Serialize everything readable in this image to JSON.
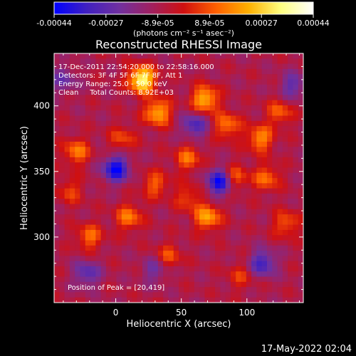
{
  "colorbar": {
    "tick_labels": [
      "-0.00044",
      "-0.00027",
      "-8.9e-05",
      "8.9e-05",
      "0.00027",
      "0.00044"
    ],
    "unit_label": "(photons cm⁻² s⁻¹ asec⁻²)",
    "range": [
      -0.00044,
      0.00044
    ],
    "colors": [
      "#0000ff",
      "#4020c0",
      "#7030a0",
      "#a02060",
      "#d01010",
      "#ff6000",
      "#ffb000",
      "#ffff80",
      "#ffffff"
    ]
  },
  "chart_data": {
    "type": "heatmap",
    "title": "Reconstructed RHESSI Image",
    "xlabel": "Heliocentric X (arcsec)",
    "ylabel": "Heliocentric Y (arcsec)",
    "xlim": [
      -47,
      143
    ],
    "ylim": [
      250,
      440
    ],
    "x_ticks": [
      0,
      50,
      100
    ],
    "y_ticks": [
      300,
      350,
      400
    ],
    "x_tick_labels": [
      "0",
      "50",
      "100"
    ],
    "y_tick_labels": [
      "300",
      "350",
      "400"
    ],
    "grid": false,
    "peak": {
      "x": 20,
      "y": 419
    },
    "hot_spots": [
      {
        "x": 20,
        "y": 420,
        "value": 0.00044
      },
      {
        "x": 32,
        "y": 395,
        "value": 0.0003
      },
      {
        "x": 68,
        "y": 405,
        "value": 0.00032
      },
      {
        "x": 85,
        "y": 385,
        "value": 0.00022
      },
      {
        "x": 110,
        "y": 375,
        "value": 0.00025
      },
      {
        "x": 125,
        "y": 395,
        "value": 0.00018
      },
      {
        "x": -30,
        "y": 365,
        "value": 0.00022
      },
      {
        "x": 5,
        "y": 375,
        "value": 0.00015
      },
      {
        "x": 55,
        "y": 360,
        "value": 0.0002
      },
      {
        "x": 70,
        "y": 315,
        "value": 0.00028
      },
      {
        "x": 90,
        "y": 345,
        "value": 0.00022
      },
      {
        "x": 115,
        "y": 345,
        "value": 0.0002
      },
      {
        "x": 130,
        "y": 310,
        "value": 0.00018
      },
      {
        "x": -20,
        "y": 300,
        "value": 0.0002
      },
      {
        "x": 10,
        "y": 315,
        "value": 0.00022
      },
      {
        "x": 30,
        "y": 340,
        "value": 0.00018
      },
      {
        "x": 40,
        "y": 285,
        "value": 0.00016
      },
      {
        "x": 95,
        "y": 270,
        "value": 0.00012
      },
      {
        "x": 55,
        "y": 330,
        "value": 0.00015
      },
      {
        "x": -35,
        "y": 335,
        "value": 0.00014
      }
    ],
    "cold_spots": [
      {
        "x": 0,
        "y": 352,
        "value": -0.00035
      },
      {
        "x": 80,
        "y": 342,
        "value": -0.00038
      },
      {
        "x": 112,
        "y": 280,
        "value": -0.00025
      },
      {
        "x": -22,
        "y": 272,
        "value": -0.0002
      },
      {
        "x": 60,
        "y": 385,
        "value": -0.00022
      },
      {
        "x": 135,
        "y": 415,
        "value": -0.00018
      },
      {
        "x": 30,
        "y": 275,
        "value": -0.00015
      },
      {
        "x": -40,
        "y": 420,
        "value": -0.00015
      }
    ]
  },
  "annotations": {
    "time_range": "17-Dec-2011 22:54:20.000 to 22:58:16.000",
    "detectors": "Detectors: 3F 4F 5F 6F 7F 8F, Att 1",
    "energy": "Energy Range: 25.0 - 50.0 keV",
    "method": "Clean     Total Counts: 8.92E+03",
    "peak_position": "Position of Peak = [20,419]"
  },
  "footer": {
    "date": "17-May-2022 02:04"
  }
}
